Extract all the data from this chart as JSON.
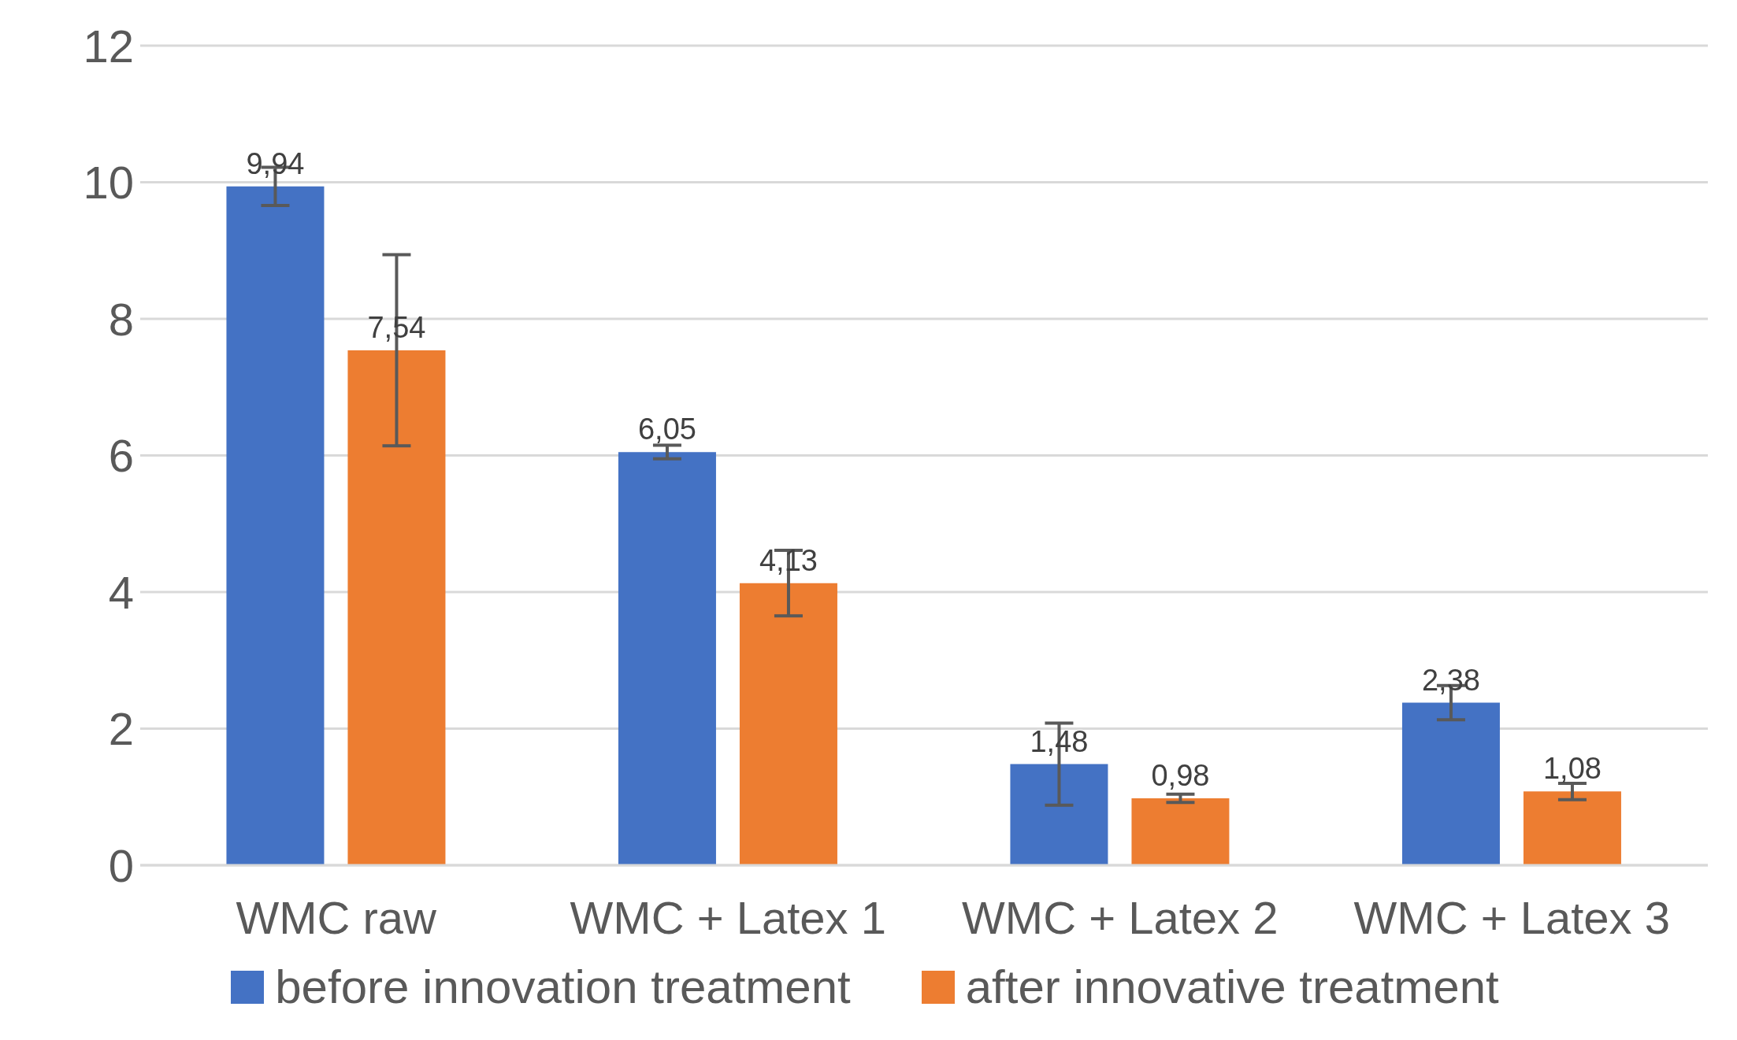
{
  "chart_data": {
    "type": "bar",
    "categories": [
      "WMC raw",
      "WMC + Latex 1",
      "WMC + Latex 2",
      "WMC + Latex 3"
    ],
    "series": [
      {
        "name": "before innovation treatment",
        "color": "#4472c4",
        "values": [
          9.94,
          6.05,
          1.48,
          2.38
        ],
        "errors": [
          0.28,
          0.1,
          0.6,
          0.25
        ],
        "value_labels": [
          "9,94",
          "6,05",
          "1,48",
          "2,38"
        ]
      },
      {
        "name": "after innovative treatment",
        "color": "#ed7d31",
        "values": [
          7.54,
          4.13,
          0.98,
          1.08
        ],
        "errors": [
          1.4,
          0.48,
          0.06,
          0.12
        ],
        "value_labels": [
          "7,54",
          "4,13",
          "0,98",
          "1,08"
        ]
      }
    ],
    "ylim": [
      0,
      12
    ],
    "yticks": [
      0,
      2,
      4,
      6,
      8,
      10,
      12
    ],
    "grid": "y",
    "legend": "bottom"
  }
}
